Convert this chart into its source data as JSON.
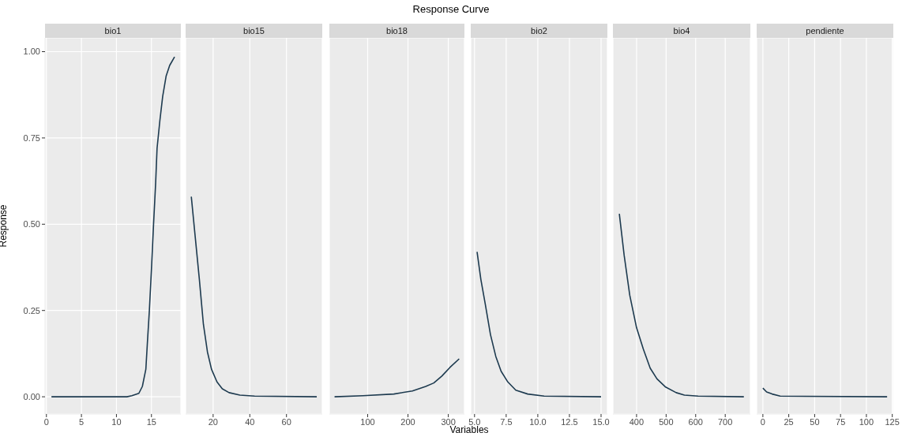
{
  "chart_data": [
    {
      "type": "line",
      "title": "bio1",
      "ylabel": "Response",
      "annotations": [
        "Response Curve"
      ],
      "x": [
        0.72,
        11.5,
        12.2,
        13.2,
        13.7,
        14.2,
        14.4,
        14.7,
        15.0,
        15.3,
        15.6,
        15.8,
        16.2,
        16.6,
        17.1,
        17.6,
        18.3
      ],
      "values": [
        0,
        0,
        0.003,
        0.01,
        0.03,
        0.08,
        0.15,
        0.25,
        0.37,
        0.5,
        0.62,
        0.72,
        0.8,
        0.87,
        0.93,
        0.96,
        0.985
      ],
      "color": "#1d3a4f",
      "xlim": [
        -0.2,
        19.2
      ],
      "xticks": [
        0,
        5,
        10,
        15
      ],
      "ylim": [
        -0.05,
        1.04
      ],
      "yticks": [
        {
          "value": 0,
          "label": "0.00"
        },
        {
          "value": 0.25,
          "label": "0.25"
        },
        {
          "value": 0.5,
          "label": "0.50"
        },
        {
          "value": 0.75,
          "label": "0.75"
        },
        {
          "value": 1,
          "label": "1.00"
        }
      ],
      "grid": true
    },
    {
      "type": "line",
      "title": "bio15",
      "x": [
        8.1,
        10.3,
        12.5,
        14.7,
        16.9,
        19.1,
        22.1,
        25,
        28.7,
        34.6,
        42.6,
        76.5
      ],
      "values": [
        0.58,
        0.46,
        0.34,
        0.21,
        0.13,
        0.08,
        0.043,
        0.023,
        0.012,
        0.005,
        0.002,
        0
      ],
      "color": "#1d3a4f",
      "xlim": [
        5,
        79.5
      ],
      "xticks": [
        20,
        40,
        60
      ],
      "ylim": [
        -0.05,
        1.04
      ],
      "grid": true,
      "tick_labels": "x"
    },
    {
      "type": "line",
      "title": "bio18",
      "xlabel": "Variables",
      "x": [
        17.9,
        88.7,
        165,
        211,
        244,
        264,
        284,
        304,
        327
      ],
      "values": [
        0,
        0.003,
        0.008,
        0.017,
        0.03,
        0.04,
        0.06,
        0.085,
        0.11
      ],
      "color": "#1d3a4f",
      "xlim": [
        5,
        340
      ],
      "xticks": [
        100,
        200,
        300
      ],
      "ylim": [
        -0.05,
        1.04
      ],
      "grid": true,
      "tick_labels": "x"
    },
    {
      "type": "line",
      "title": "bio2",
      "x": [
        5.2,
        5.5,
        5.84,
        6.26,
        6.68,
        7.1,
        7.63,
        8.26,
        9.2,
        10.5,
        15.0
      ],
      "values": [
        0.42,
        0.34,
        0.27,
        0.18,
        0.117,
        0.074,
        0.043,
        0.019,
        0.008,
        0.002,
        0
      ],
      "color": "#1d3a4f",
      "xlim": [
        4.7,
        15.5
      ],
      "xticks": [
        {
          "value": 5,
          "label": "5.0"
        },
        {
          "value": 7.5,
          "label": "7.5"
        },
        {
          "value": 10,
          "label": "10.0"
        },
        {
          "value": 12.5,
          "label": "12.5"
        },
        {
          "value": 15,
          "label": "15.0"
        }
      ],
      "ylim": [
        -0.05,
        1.04
      ],
      "grid": true,
      "tick_labels": "x"
    },
    {
      "type": "line",
      "title": "bio4",
      "x": [
        341.7,
        358,
        377,
        400,
        423,
        446,
        469,
        497,
        534,
        562,
        608,
        763
      ],
      "values": [
        0.53,
        0.41,
        0.294,
        0.2,
        0.138,
        0.083,
        0.052,
        0.029,
        0.012,
        0.005,
        0.002,
        0
      ],
      "color": "#1d3a4f",
      "xlim": [
        320,
        785
      ],
      "xticks": [
        400,
        500,
        600,
        700
      ],
      "ylim": [
        -0.05,
        1.04
      ],
      "grid": true,
      "tick_labels": "x"
    },
    {
      "type": "line",
      "title": "pendiente",
      "x": [
        0,
        3.6,
        8.9,
        16.7,
        120
      ],
      "values": [
        0.025,
        0.014,
        0.008,
        0.002,
        0
      ],
      "color": "#1d3a4f",
      "xlim": [
        -6,
        126
      ],
      "xticks": [
        0,
        25,
        50,
        75,
        100,
        125
      ],
      "ylim": [
        -0.05,
        1.04
      ],
      "grid": true,
      "tick_labels": "x"
    }
  ]
}
